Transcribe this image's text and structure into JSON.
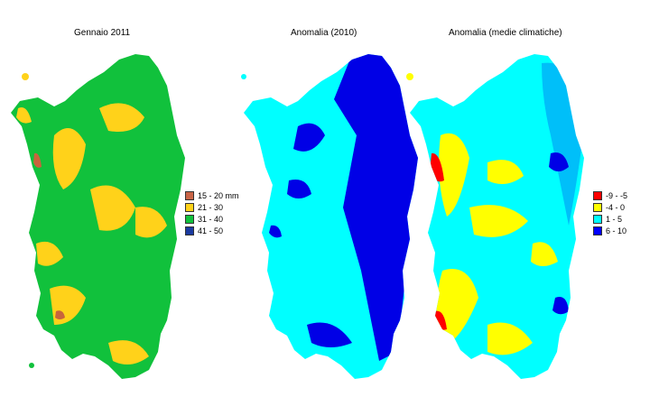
{
  "panels": [
    {
      "title": "Gennaio 2011",
      "base_color": "#11c13c",
      "patch_colors": [
        "#ffd21a",
        "#c8643c"
      ],
      "legend": [
        {
          "label": "15 - 20 mm",
          "color": "#c86446"
        },
        {
          "label": "21 - 30",
          "color": "#ffd21a"
        },
        {
          "label": "31 - 40",
          "color": "#11c13c"
        },
        {
          "label": "41 - 50",
          "color": "#1a3aa0"
        }
      ]
    },
    {
      "title": "Anomalia (2010)",
      "base_color": "#00ffff",
      "patch_colors": [
        "#0000e6"
      ],
      "legend": []
    },
    {
      "title": "Anomalia (medie climatiche)",
      "base_color": "#00ffff",
      "patch_colors": [
        "#ffff00",
        "#ff0000",
        "#0000e6"
      ],
      "legend": [
        {
          "label": "-9 - -5",
          "color": "#ff0000"
        },
        {
          "label": "-4 - 0",
          "color": "#ffff00"
        },
        {
          "label": "1 - 5",
          "color": "#00ffff"
        },
        {
          "label": "6 - 10",
          "color": "#0000ff"
        }
      ]
    }
  ]
}
